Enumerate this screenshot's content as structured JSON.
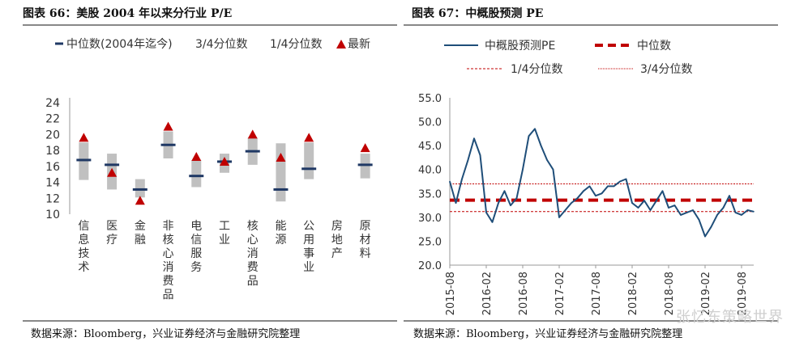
{
  "left": {
    "title": "图表 66：美股 2004 年以来分行业 P/E",
    "source": "数据来源：Bloomberg，兴业证券经济与金融研究院整理",
    "chart_data": {
      "type": "bar",
      "title": "",
      "legend": [
        "中位数(2004年迄今)",
        "3/4分位数",
        "1/4分位数",
        "最新"
      ],
      "legend_position": "top",
      "ylim": [
        10,
        24
      ],
      "yticks": [
        10,
        12,
        14,
        16,
        18,
        20,
        22,
        24
      ],
      "categories": [
        "信息技术",
        "医疗",
        "金融",
        "非核心消费品",
        "电信服务",
        "工业",
        "核心消费品",
        "能源",
        "公用事业",
        "房地产",
        "原材料"
      ],
      "series": [
        {
          "name": "3/4分位数",
          "values": [
            19.0,
            17.6,
            14.4,
            20.4,
            16.8,
            17.6,
            19.6,
            18.9,
            19.0,
            null,
            17.6
          ]
        },
        {
          "name": "1/4分位数",
          "values": [
            14.3,
            13.1,
            12.1,
            17.0,
            13.4,
            15.2,
            16.2,
            11.6,
            14.4,
            null,
            14.5
          ]
        },
        {
          "name": "中位数(2004年迄今)",
          "values": [
            16.8,
            16.2,
            13.1,
            18.7,
            14.8,
            16.6,
            17.9,
            13.1,
            15.7,
            null,
            16.2
          ]
        },
        {
          "name": "最新",
          "values": [
            19.6,
            15.2,
            11.7,
            21.0,
            17.2,
            16.6,
            20.0,
            17.1,
            19.6,
            null,
            18.3
          ]
        }
      ],
      "colors": {
        "band": "#c0c0c0",
        "median": "#1f3864",
        "latest": "#c00000"
      },
      "grid": false
    }
  },
  "right": {
    "title": "图表 67：中概股预测 PE",
    "source": "数据来源：Bloomberg，兴业证券经济与金融研究院整理",
    "watermark": "张忆东策略世界",
    "chart_data": {
      "type": "line",
      "title": "",
      "legend": [
        "中概股预测PE",
        "中位数",
        "1/4分位数",
        "3/4分位数"
      ],
      "legend_position": "top",
      "ylim": [
        20.0,
        55.0
      ],
      "yticks": [
        "20.0",
        "25.0",
        "30.0",
        "35.0",
        "40.0",
        "45.0",
        "50.0",
        "55.0"
      ],
      "xticks": [
        "2015-08",
        "2016-02",
        "2016-08",
        "2017-02",
        "2017-08",
        "2018-02",
        "2018-08",
        "2019-02",
        "2019-08"
      ],
      "x_range": [
        "2015-08",
        "2019-10"
      ],
      "median": 33.6,
      "q1": 31.2,
      "q3": 37.0,
      "series": [
        {
          "name": "中概股预测PE",
          "x": [
            "2015-08",
            "2015-09",
            "2015-10",
            "2015-11",
            "2015-12",
            "2016-01",
            "2016-02",
            "2016-03",
            "2016-04",
            "2016-05",
            "2016-06",
            "2016-07",
            "2016-08",
            "2016-09",
            "2016-10",
            "2016-11",
            "2016-12",
            "2017-01",
            "2017-02",
            "2017-03",
            "2017-04",
            "2017-05",
            "2017-06",
            "2017-07",
            "2017-08",
            "2017-09",
            "2017-10",
            "2017-11",
            "2017-12",
            "2018-01",
            "2018-02",
            "2018-03",
            "2018-04",
            "2018-05",
            "2018-06",
            "2018-07",
            "2018-08",
            "2018-09",
            "2018-10",
            "2018-11",
            "2018-12",
            "2019-01",
            "2019-02",
            "2019-03",
            "2019-04",
            "2019-05",
            "2019-06",
            "2019-07",
            "2019-08",
            "2019-09",
            "2019-10"
          ],
          "values": [
            37.5,
            33.0,
            38.0,
            42.0,
            46.5,
            43.0,
            31.0,
            29.0,
            33.0,
            35.5,
            32.5,
            34.0,
            40.0,
            47.0,
            48.5,
            45.0,
            42.0,
            40.0,
            30.0,
            31.5,
            33.0,
            34.0,
            35.5,
            36.5,
            34.5,
            35.0,
            36.5,
            36.5,
            37.5,
            38.0,
            33.0,
            32.0,
            33.5,
            31.5,
            33.5,
            35.5,
            32.0,
            32.5,
            30.5,
            31.0,
            31.5,
            29.5,
            26.0,
            28.0,
            30.5,
            32.0,
            34.5,
            31.0,
            30.5,
            31.5,
            31.2
          ]
        }
      ],
      "colors": {
        "series": "#1f4e79",
        "median": "#c00000",
        "quartile": "#c00000"
      },
      "grid": false
    }
  }
}
